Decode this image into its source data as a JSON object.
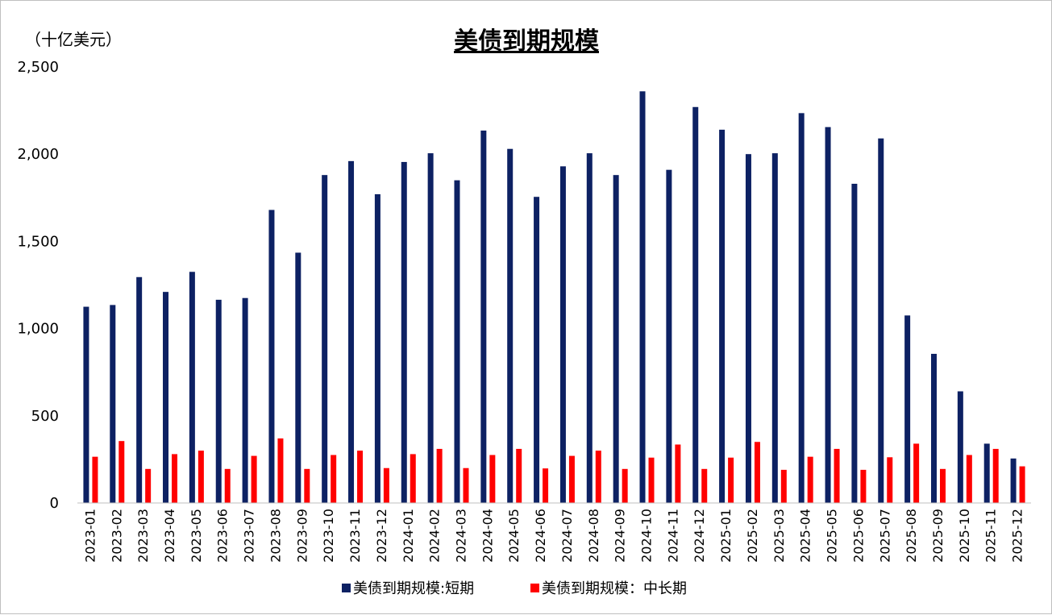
{
  "chart_data": {
    "type": "bar",
    "title": "美债到期规模",
    "unit_label": "（十亿美元）",
    "xlabel": "",
    "ylabel": "",
    "ylim": [
      0,
      2500
    ],
    "yticks": [
      0,
      500,
      1000,
      1500,
      2000,
      2500
    ],
    "ytick_labels": [
      "0",
      "500",
      "1,000",
      "1,500",
      "2,000",
      "2,500"
    ],
    "grid": false,
    "legend_position": "bottom",
    "categories": [
      "2023-01",
      "2023-02",
      "2023-03",
      "2023-04",
      "2023-05",
      "2023-06",
      "2023-07",
      "2023-08",
      "2023-09",
      "2023-10",
      "2023-11",
      "2023-12",
      "2024-01",
      "2024-02",
      "2024-03",
      "2024-04",
      "2024-05",
      "2024-06",
      "2024-07",
      "2024-08",
      "2024-09",
      "2024-10",
      "2024-11",
      "2024-12",
      "2025-01",
      "2025-02",
      "2025-03",
      "2025-04",
      "2025-05",
      "2025-06",
      "2025-07",
      "2025-08",
      "2025-09",
      "2025-10",
      "2025-11",
      "2025-12"
    ],
    "series": [
      {
        "name": "美债到期规模:短期",
        "color": "#0d2163",
        "values": [
          1125,
          1135,
          1295,
          1210,
          1325,
          1165,
          1175,
          1680,
          1435,
          1880,
          1960,
          1770,
          1955,
          2005,
          1850,
          2135,
          2030,
          1755,
          1930,
          2005,
          1880,
          2360,
          1910,
          2270,
          2140,
          2000,
          2005,
          2235,
          2155,
          1830,
          2090,
          1075,
          855,
          640,
          340,
          255
        ]
      },
      {
        "name": "美债到期规模：中长期",
        "color": "#ff0000",
        "values": [
          265,
          355,
          195,
          280,
          300,
          195,
          270,
          370,
          195,
          275,
          300,
          200,
          280,
          310,
          200,
          275,
          310,
          198,
          270,
          300,
          195,
          260,
          335,
          195,
          260,
          350,
          190,
          265,
          310,
          190,
          262,
          340,
          195,
          275,
          310,
          210
        ]
      }
    ]
  }
}
